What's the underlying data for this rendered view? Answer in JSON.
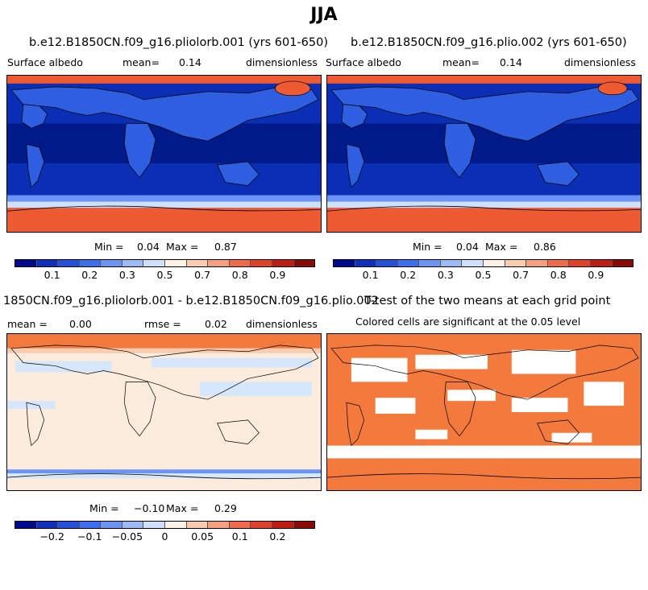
{
  "title": "JJA",
  "panels": [
    {
      "title": "b.e12.B1850CN.f09_g16.pliolorb.001 (yrs 601-650)",
      "left_label": "Surface albedo",
      "mean_label": "mean=",
      "mean_value": "0.14",
      "units": "dimensionless",
      "min_label": "Min =",
      "min_value": "0.04",
      "max_label": "Max =",
      "max_value": "0.87"
    },
    {
      "title": "b.e12.B1850CN.f09_g16.plio.002 (yrs 601-650)",
      "left_label": "Surface albedo",
      "mean_label": "mean=",
      "mean_value": "0.14",
      "units": "dimensionless",
      "min_label": "Min =",
      "min_value": "0.04",
      "max_label": "Max =",
      "max_value": "0.86"
    },
    {
      "title": "1850CN.f09_g16.pliolorb.001 - b.e12.B1850CN.f09_g16.plio.002",
      "mean_label": "mean =",
      "mean_value": "0.00",
      "rmse_label": "rmse =",
      "rmse_value": "0.02",
      "units": "dimensionless",
      "min_label": "Min =",
      "min_value": "−0.10",
      "max_label": "Max =",
      "max_value": "0.29"
    },
    {
      "title": "T-test of the two means at each grid point",
      "subtitle": "Colored cells are significant at the 0.05 level"
    }
  ],
  "colorbar_abs": {
    "ticks": [
      "0.1",
      "0.2",
      "0.3",
      "0.5",
      "0.7",
      "0.8",
      "0.9"
    ],
    "colors": [
      "#000a8c",
      "#0f2fbf",
      "#2450dc",
      "#3c6ef0",
      "#6a94f5",
      "#9dbcf7",
      "#cfe0fb",
      "#fdf2e8",
      "#f9ccb0",
      "#f59f7d",
      "#f06a4b",
      "#e1412a",
      "#bf1d12",
      "#8a0a05"
    ]
  },
  "colorbar_diff": {
    "ticks": [
      "−0.2",
      "−0.1",
      "−0.05",
      "0",
      "0.05",
      "0.1",
      "0.2"
    ],
    "colors": [
      "#000a8c",
      "#0f2fbf",
      "#2450dc",
      "#3c6ef0",
      "#6a94f5",
      "#9dbcf7",
      "#cfe0fb",
      "#fdf2e8",
      "#f9ccb0",
      "#f59f7d",
      "#f06a4b",
      "#e1412a",
      "#bf1d12",
      "#8a0a05"
    ]
  },
  "colors": {
    "ocean_dark": "#001a8a",
    "ocean_mid": "#0a2fb4",
    "land_blue": "#2d5fe0",
    "ice_red": "#ee5a32",
    "diff_bg": "#fcecdd",
    "diff_blue": "#d6e6fb",
    "ttest_fill": "#f4793d"
  }
}
